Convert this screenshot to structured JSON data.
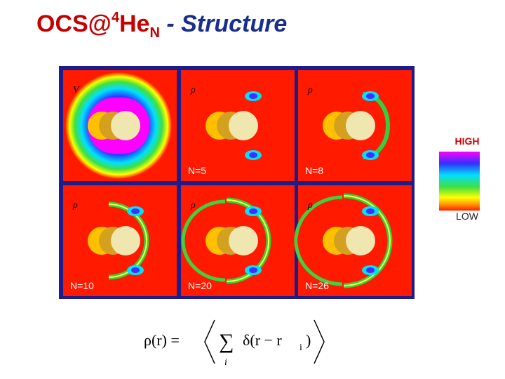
{
  "title": {
    "main": "OCS@",
    "sup": "4",
    "element": "He",
    "sub": "N",
    "dash": "-",
    "subtitle": "Structure"
  },
  "panels": [
    {
      "symbol": "V"
    },
    {
      "symbol": "ρ",
      "label": "N=5"
    },
    {
      "symbol": "ρ",
      "label": "N=8"
    },
    {
      "symbol": "ρ",
      "label": "N=10"
    },
    {
      "symbol": "ρ",
      "label": "N=20"
    },
    {
      "symbol": "ρ",
      "label": "N=26"
    }
  ],
  "colorbar": {
    "high": "HIGH",
    "low": "LOW"
  },
  "formula": {
    "lhs": "ρ(r) =",
    "sum": "∑",
    "index": "i",
    "term": "δ(r − r",
    "sub": "i",
    "close": ")"
  }
}
